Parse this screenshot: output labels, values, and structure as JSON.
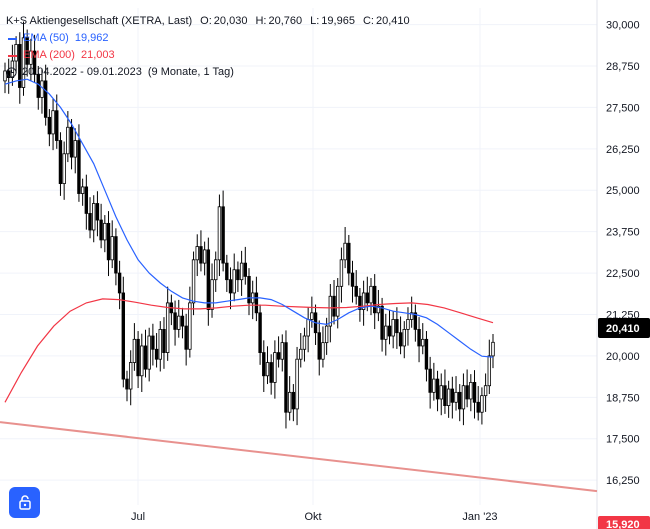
{
  "legend": {
    "symbol": "K+S Aktiengesellschaft (XETRA, Last)",
    "open_label": "O:",
    "open": "20,030",
    "high_label": "H:",
    "high": "20,760",
    "low_label": "L:",
    "low": "19,965",
    "close_label": "C:",
    "close": "20,410",
    "ema50_label": "EMA (50)",
    "ema50_value": "19,962",
    "ema200_label": "EMA (200)",
    "ema200_value": "21,003",
    "range": "20.04.2022 - 09.01.2023",
    "period": "(9 Monate, 1 Tag)"
  },
  "price_axis": {
    "ticks": [
      "30,000",
      "28,750",
      "27,500",
      "26,250",
      "25,000",
      "23,750",
      "22,500",
      "21,250",
      "20,000",
      "18,750",
      "17,500",
      "16,250"
    ],
    "last_price": "20,410",
    "trendline_label": "15,920"
  },
  "time_axis": {
    "ticks": [
      "Jul",
      "Okt",
      "Jan '23"
    ]
  },
  "colors": {
    "candles": "#000000",
    "ema50": "#2962ff",
    "ema200": "#f23645",
    "trendline": "#e8918e",
    "badge": "#000000",
    "trend_badge": "#f23645"
  },
  "chart_data": {
    "type": "line",
    "title": "K+S Aktiengesellschaft (XETRA, Last)",
    "ylim": [
      15.5,
      30.5
    ],
    "y_ticks": [
      30.0,
      28.75,
      27.5,
      26.25,
      25.0,
      23.75,
      22.5,
      21.25,
      20.0,
      18.75,
      17.5,
      16.25
    ],
    "x_ticks": [
      "Jul",
      "Okt",
      "Jan '23"
    ],
    "series": [
      {
        "name": "K+S Aktiengesellschaft (XETRA, Last)",
        "style": "candlestick",
        "close": [
          28.6,
          28.4,
          28.9,
          29.4,
          28.1,
          29.6,
          28.8,
          29.2,
          28.5,
          27.8,
          28.3,
          27.2,
          26.7,
          27.4,
          26.5,
          25.2,
          26.1,
          26.9,
          26.0,
          26.5,
          24.9,
          25.1,
          24.3,
          23.8,
          24.6,
          24.1,
          23.5,
          24.0,
          22.9,
          23.6,
          22.5,
          21.9,
          19.3,
          19.0,
          19.8,
          20.5,
          19.4,
          20.3,
          19.6,
          20.6,
          20.2,
          19.9,
          20.8,
          20.1,
          21.6,
          21.3,
          20.8,
          21.2,
          20.9,
          20.2,
          21.6,
          22.9,
          23.3,
          22.8,
          23.2,
          21.4,
          22.3,
          22.9,
          24.5,
          22.8,
          22.3,
          21.9,
          22.6,
          22.3,
          22.8,
          22.4,
          21.6,
          21.9,
          21.3,
          20.1,
          19.4,
          19.8,
          19.2,
          20.1,
          19.9,
          20.4,
          18.3,
          18.9,
          18.4,
          19.9,
          20.2,
          20.6,
          21.1,
          21.3,
          20.7,
          19.9,
          20.4,
          20.9,
          21.8,
          21.2,
          22.1,
          22.9,
          23.4,
          22.5,
          22.1,
          21.8,
          21.4,
          21.9,
          21.6,
          22.1,
          21.3,
          21.5,
          20.5,
          20.9,
          20.6,
          21.1,
          20.7,
          20.3,
          20.8,
          21.1,
          21.3,
          20.8,
          20.3,
          20.5,
          19.6,
          18.9,
          19.3,
          18.7,
          19.1,
          18.5,
          19.0,
          18.6,
          18.9,
          18.4,
          19.1,
          18.7,
          19.2,
          18.6,
          18.3,
          18.8,
          19.1,
          20.0,
          20.41
        ]
      },
      {
        "name": "EMA (50)",
        "values": [
          28.2,
          28.3,
          28.35,
          28.2,
          27.9,
          27.5,
          27.0,
          26.4,
          25.8,
          25.0,
          24.2,
          23.5,
          22.9,
          22.5,
          22.2,
          21.95,
          21.75,
          21.65,
          21.6,
          21.6,
          21.65,
          21.7,
          21.75,
          21.75,
          21.7,
          21.55,
          21.35,
          21.15,
          21.0,
          20.95,
          21.1,
          21.3,
          21.45,
          21.5,
          21.45,
          21.35,
          21.3,
          21.25,
          21.15,
          20.95,
          20.7,
          20.45,
          20.2,
          19.99,
          19.962
        ]
      },
      {
        "name": "EMA (200)",
        "values": [
          18.6,
          19.5,
          20.3,
          20.9,
          21.35,
          21.6,
          21.72,
          21.7,
          21.62,
          21.53,
          21.46,
          21.42,
          21.42,
          21.45,
          21.5,
          21.53,
          21.53,
          21.5,
          21.48,
          21.46,
          21.45,
          21.46,
          21.5,
          21.55,
          21.58,
          21.6,
          21.55,
          21.45,
          21.3,
          21.15,
          21.003
        ]
      }
    ],
    "trendline": {
      "start": 18.0,
      "end": 15.92
    }
  }
}
